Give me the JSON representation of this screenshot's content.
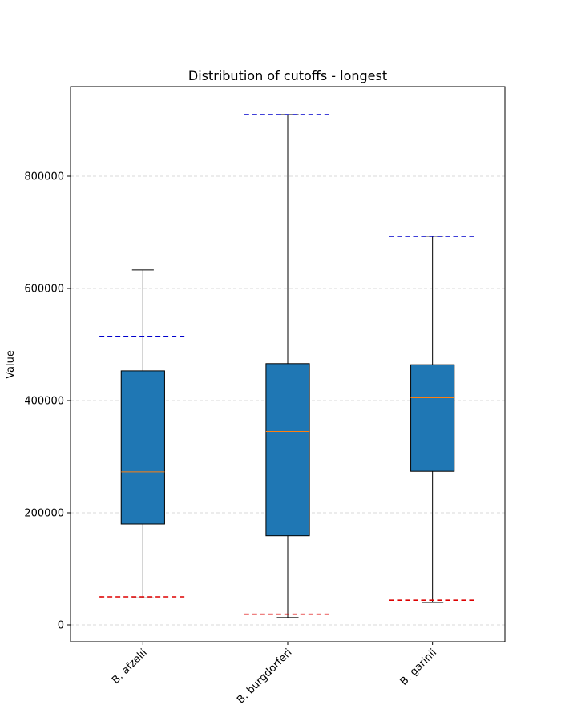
{
  "chart_data": {
    "type": "box",
    "title": "Distribution of cutoffs - longest",
    "xlabel": "",
    "ylabel": "Value",
    "categories": [
      "B. afzelii",
      "B. burgdorferi",
      "B. garinii"
    ],
    "boxes": [
      {
        "whisker_low": 48000,
        "q1": 180000,
        "median": 273000,
        "q3": 453000,
        "whisker_high": 633000,
        "upper_cutoff": 514000,
        "lower_cutoff": 50000
      },
      {
        "whisker_low": 13000,
        "q1": 159000,
        "median": 345000,
        "q3": 466000,
        "whisker_high": 910000,
        "upper_cutoff": 910000,
        "lower_cutoff": 19000
      },
      {
        "whisker_low": 40000,
        "q1": 274000,
        "median": 405000,
        "q3": 464000,
        "whisker_high": 693000,
        "upper_cutoff": 693000,
        "lower_cutoff": 44000
      }
    ],
    "ylim": [
      -30000,
      960000
    ],
    "yticks": [
      0,
      200000,
      400000,
      600000,
      800000
    ],
    "ytick_labels": [
      "0",
      "200000",
      "400000",
      "600000",
      "800000"
    ],
    "grid": {
      "y": true,
      "x": false,
      "style": "dashed"
    },
    "colors": {
      "box_fill": "#1f77b4",
      "median": "#ff7f0e",
      "upper_cutoff": "#0000cc",
      "lower_cutoff": "#dd0000",
      "grid": "#cccccc"
    }
  }
}
